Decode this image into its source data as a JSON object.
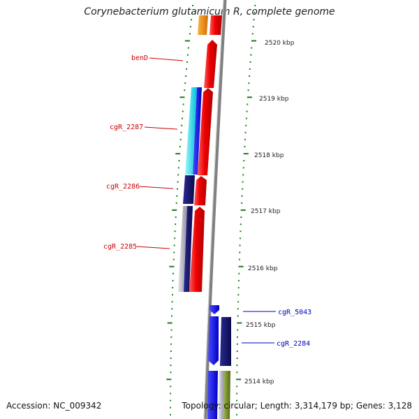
{
  "title": "Corynebacterium glutamicum R, complete genome",
  "accession_label": "Accession: NC_009342",
  "topology_label": "Topology: circular; Length: 3,314,179 bp; Genes: 3,128",
  "scale_labels": [
    "2520 kbp",
    "2519 kbp",
    "2518 kbp",
    "2517 kbp",
    "2516 kbp",
    "2515 kbp",
    "2514 kbp"
  ],
  "gene_labels": [
    "benD",
    "cgR_2287",
    "cgR_2286",
    "cgR_2285",
    "cgR_5043",
    "cgR_2284"
  ],
  "colors": {
    "forward_label": "#cc0000",
    "reverse_label": "#0000bb",
    "backbone": "#808080",
    "tick": "#1a7a1a",
    "red": "#ee0000",
    "orange": "#ee8800",
    "cyan": "#00e8f0",
    "blue": "#1010ee",
    "navy": "#10106e",
    "grey": "#b8b8c0",
    "olive": "#6e8a1a"
  }
}
